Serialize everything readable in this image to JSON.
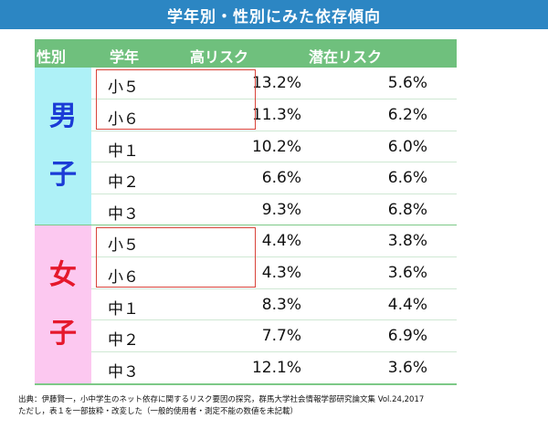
{
  "title": "学年別・性別にみた依存傾向",
  "headers": {
    "gender": "性別",
    "grade": "学年",
    "high_risk": "高リスク",
    "latent_risk": "潜在リスク"
  },
  "groups": [
    {
      "label_chars": [
        "男",
        "子"
      ],
      "color": "#1b3bd6",
      "background": "#aef1f7",
      "rows": [
        {
          "grade": "小５",
          "high": "13.2%",
          "latent": "5.6%"
        },
        {
          "grade": "小６",
          "high": "11.3%",
          "latent": "6.2%"
        },
        {
          "grade": "中１",
          "high": "10.2%",
          "latent": "6.0%"
        },
        {
          "grade": "中２",
          "high": "6.6%",
          "latent": "6.6%"
        },
        {
          "grade": "中３",
          "high": "9.3%",
          "latent": "6.8%"
        }
      ]
    },
    {
      "label_chars": [
        "女",
        "子"
      ],
      "color": "#e5182c",
      "background": "#fcc8f0",
      "rows": [
        {
          "grade": "小５",
          "high": "4.4%",
          "latent": "3.8%"
        },
        {
          "grade": "小６",
          "high": "4.3%",
          "latent": "3.6%"
        },
        {
          "grade": "中１",
          "high": "8.3%",
          "latent": "4.4%"
        },
        {
          "grade": "中２",
          "high": "7.7%",
          "latent": "6.9%"
        },
        {
          "grade": "中３",
          "high": "12.1%",
          "latent": "3.6%"
        }
      ]
    }
  ],
  "footer": {
    "line1": "出典：伊藤賢一，小中学生のネット依存に関するリスク要因の探究，群馬大学社会情報学部研究論文集 Vol.24,2017",
    "line2": "ただし，表１を一部抜粋・改変した（一般的使用者・測定不能の数値を未記載）"
  },
  "colors": {
    "banner": "#2c86c3",
    "header": "#6fc07d",
    "highlight": "#d9443b"
  }
}
